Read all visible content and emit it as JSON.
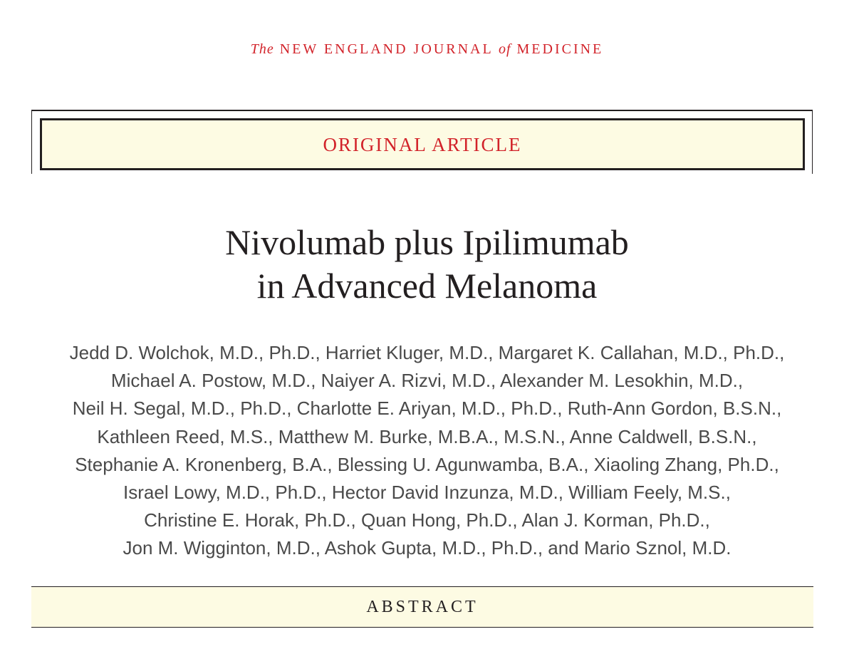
{
  "journal": {
    "the": "The",
    "name1": "New England Journal",
    "of": "of",
    "name2": "Medicine"
  },
  "article_type": "Original Article",
  "title": {
    "line1": "Nivolumab plus Ipilimumab",
    "line2": "in Advanced Melanoma"
  },
  "authors": [
    "Jedd D. Wolchok, M.D., Ph.D., Harriet Kluger, M.D., Margaret K. Callahan, M.D., Ph.D.,",
    "Michael A. Postow, M.D., Naiyer A. Rizvi, M.D., Alexander M. Lesokhin, M.D.,",
    "Neil H. Segal, M.D., Ph.D., Charlotte E. Ariyan, M.D., Ph.D., Ruth-Ann Gordon, B.S.N.,",
    "Kathleen Reed, M.S., Matthew M. Burke, M.B.A., M.S.N., Anne Caldwell, B.S.N.,",
    "Stephanie A. Kronenberg, B.A., Blessing U. Agunwamba, B.A., Xiaoling Zhang, Ph.D.,",
    "Israel Lowy, M.D., Ph.D., Hector David Inzunza, M.D., William Feely, M.S.,",
    "Christine E. Horak, Ph.D., Quan Hong, Ph.D., Alan J. Korman, Ph.D.,",
    "Jon M. Wigginton, M.D., Ashok Gupta, M.D., Ph.D., and Mario Sznol, M.D."
  ],
  "section_label": "Abstract",
  "colors": {
    "accent_red": "#d2232a",
    "banner_fill": "#fdfbe3",
    "rule": "#231f20",
    "author_text": "#4a4a4a"
  }
}
